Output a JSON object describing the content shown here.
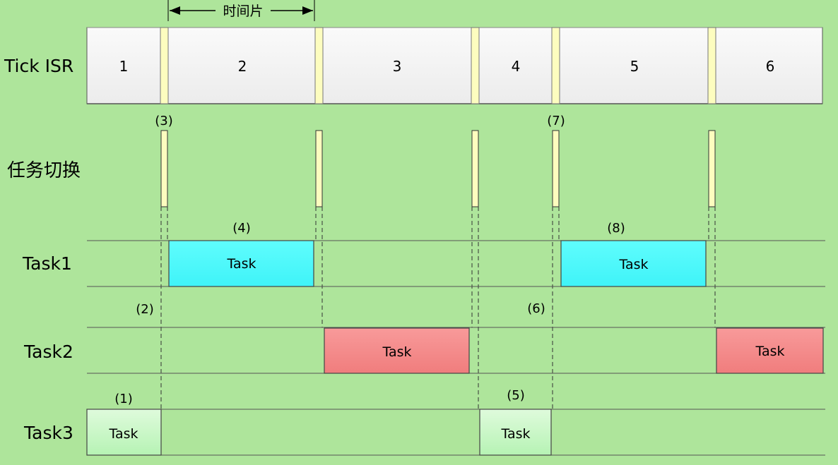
{
  "timeslice_label": "时间片",
  "rows": {
    "tick_isr": "Tick ISR",
    "task_switch": "任务切换",
    "task1": "Task1",
    "task2": "Task2",
    "task3": "Task3"
  },
  "ticks": [
    "1",
    "2",
    "3",
    "4",
    "5",
    "6"
  ],
  "switch_markers": [
    "(3)",
    "(7)"
  ],
  "task_block_label": "Task",
  "task1_annotations": [
    "(4)",
    "(8)"
  ],
  "task2_annotations": [
    "(2)",
    "(6)"
  ],
  "task3_annotations": [
    "(1)",
    "(5)"
  ],
  "colors": {
    "background": "#aee59b",
    "tick_cell": "#f3f3f3",
    "isr_marker": "#fdfdbf",
    "task1": "#4dfcfc",
    "task2": "#f58c8c",
    "task3": "#c8f8c8"
  }
}
